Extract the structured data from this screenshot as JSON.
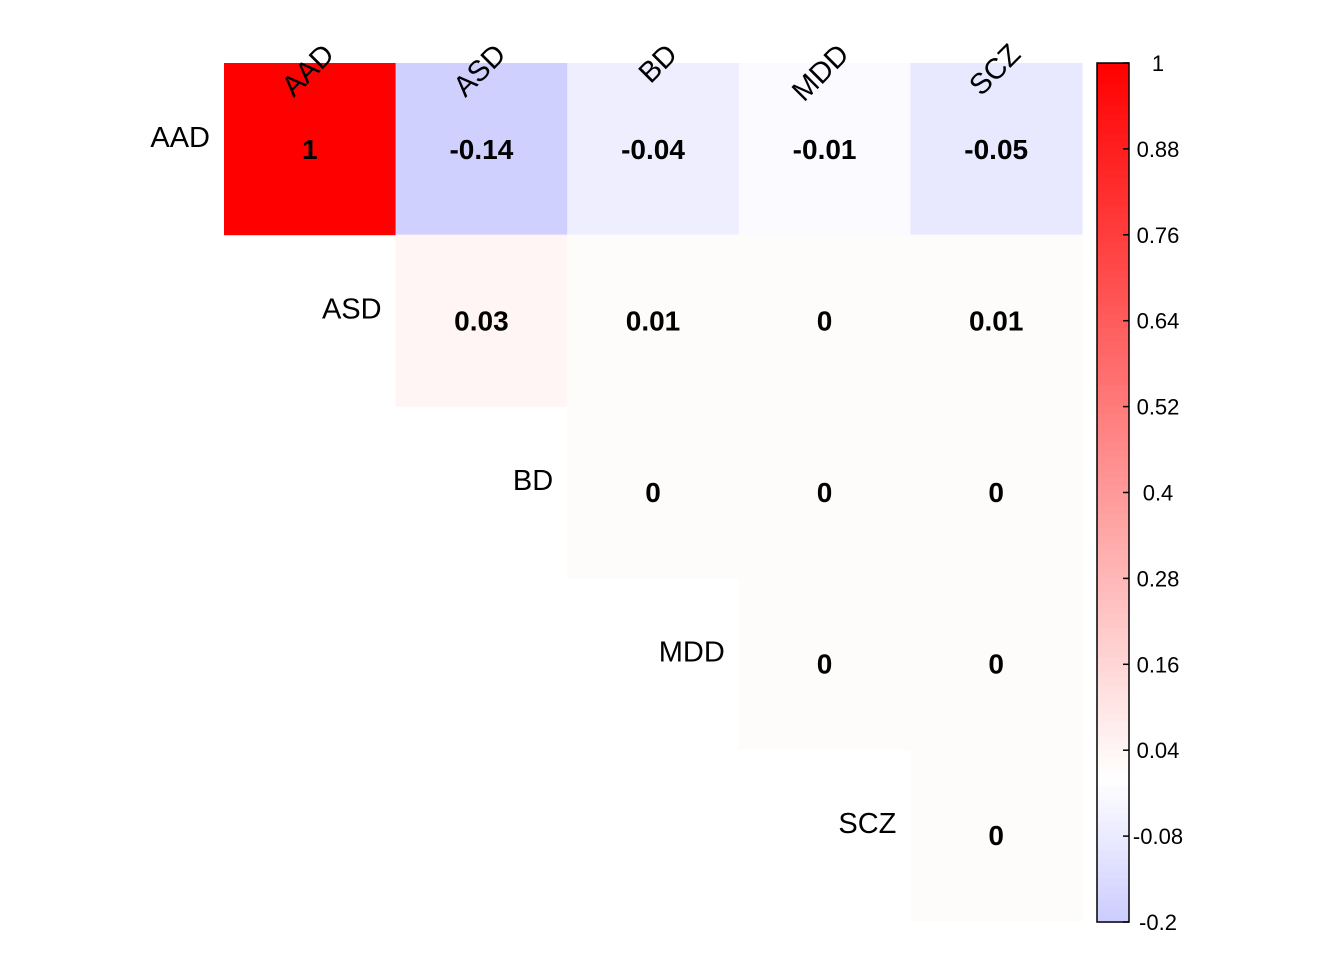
{
  "chart_data": {
    "type": "heatmap",
    "subtype": "upper-triangular correlation matrix",
    "variables": [
      "AAD",
      "ASD",
      "BD",
      "MDD",
      "SCZ"
    ],
    "matrix": [
      [
        1,
        -0.14,
        -0.04,
        -0.01,
        -0.05
      ],
      [
        null,
        0.03,
        0.01,
        0,
        0.01
      ],
      [
        null,
        null,
        0,
        0,
        0
      ],
      [
        null,
        null,
        null,
        0,
        0
      ],
      [
        null,
        null,
        null,
        null,
        0
      ]
    ],
    "value_labels": [
      [
        "1",
        "-0.14",
        "-0.04",
        "-0.01",
        "-0.05"
      ],
      [
        null,
        "0.03",
        "0.01",
        "0",
        "0.01"
      ],
      [
        null,
        null,
        "0",
        "0",
        "0"
      ],
      [
        null,
        null,
        null,
        "0",
        "0"
      ],
      [
        null,
        null,
        null,
        null,
        "0"
      ]
    ],
    "colorbar": {
      "range": [
        -0.2,
        1
      ],
      "ticks": [
        "1",
        "0.88",
        "0.76",
        "0.64",
        "0.52",
        "0.4",
        "0.28",
        "0.16",
        "0.04",
        "-0.08",
        "-0.2"
      ],
      "colors": {
        "low": "#ccccff",
        "mid": "#ffffff",
        "high": "#ff0000"
      },
      "position": "right"
    },
    "cell_colors": {
      "AAD-AAD": "#ff0000",
      "AAD-ASD": "#d0d0ff",
      "AAD-BD": "#eeeeff",
      "AAD-MDD": "#fafaff",
      "AAD-SCZ": "#e8e8ff",
      "ASD-ASD": "#fff5f5",
      "other": "#fdfcfb"
    }
  }
}
